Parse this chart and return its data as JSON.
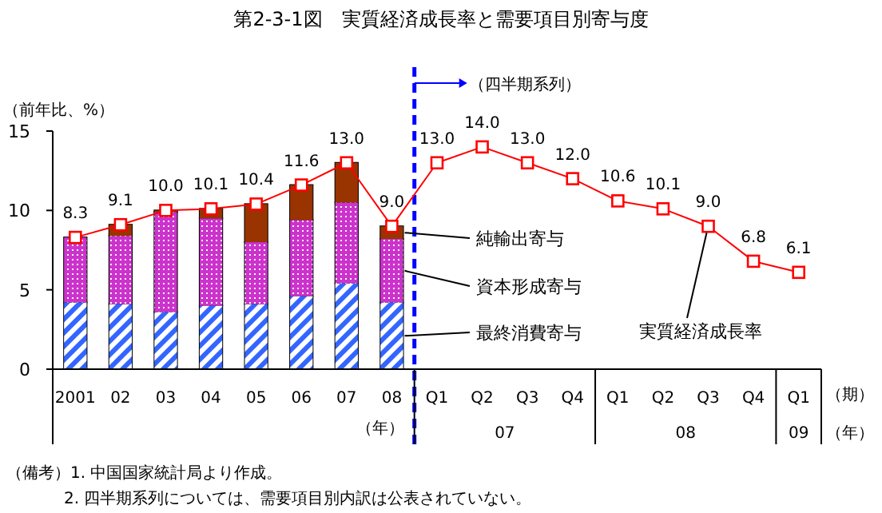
{
  "chart_data": {
    "type": "bar",
    "stacked": true,
    "title": "第2-3-1図　実質経済成長率と需要項目別寄与度",
    "ylabel": "（前年比、%）",
    "categories": [
      "2001",
      "02",
      "03",
      "04",
      "05",
      "06",
      "07",
      "08",
      "Q1",
      "Q2",
      "Q3",
      "Q4",
      "Q1",
      "Q2",
      "Q3",
      "Q4",
      "Q1"
    ],
    "series": [
      {
        "name": "最終消費寄与",
        "color": "#3366ff",
        "values": [
          4.2,
          4.1,
          3.6,
          4.0,
          4.1,
          4.6,
          5.4,
          4.2,
          null,
          null,
          null,
          null,
          null,
          null,
          null,
          null,
          null
        ]
      },
      {
        "name": "資本形成寄与",
        "color": "#cc33cc",
        "values": [
          4.1,
          4.3,
          6.3,
          5.5,
          3.9,
          4.8,
          5.1,
          4.0,
          null,
          null,
          null,
          null,
          null,
          null,
          null,
          null,
          null
        ]
      },
      {
        "name": "純輸出寄与",
        "color": "#993300",
        "values": [
          0.0,
          0.7,
          0.1,
          0.6,
          2.4,
          2.2,
          2.5,
          0.8,
          null,
          null,
          null,
          null,
          null,
          null,
          null,
          null,
          null
        ]
      },
      {
        "name": "実質経済成長率",
        "type": "line",
        "color": "#ff0000",
        "values": [
          8.3,
          9.1,
          10.0,
          10.1,
          10.4,
          11.6,
          13.0,
          9.0,
          13.0,
          14.0,
          13.0,
          12.0,
          10.6,
          10.1,
          9.0,
          6.8,
          6.1
        ],
        "value_labels": [
          "8.3",
          "9.1",
          "10.0",
          "10.1",
          "10.4",
          "11.6",
          "13.0",
          "9.0",
          "13.0",
          "14.0",
          "13.0",
          "12.0",
          "10.6",
          "10.1",
          "9.0",
          "6.8",
          "6.1"
        ]
      }
    ],
    "marker": "square",
    "ylim": [
      0,
      15
    ],
    "yticks": [
      0,
      5,
      10,
      15
    ],
    "grid": false,
    "annotations": [
      "（四半期系列）",
      "（年）",
      "07",
      "08",
      "09",
      "（期）",
      "（年）",
      "（備考）1. 中国国家統計局より作成。",
      "2. 四半期系列については、需要項目別内訳は公表されていない。"
    ]
  }
}
